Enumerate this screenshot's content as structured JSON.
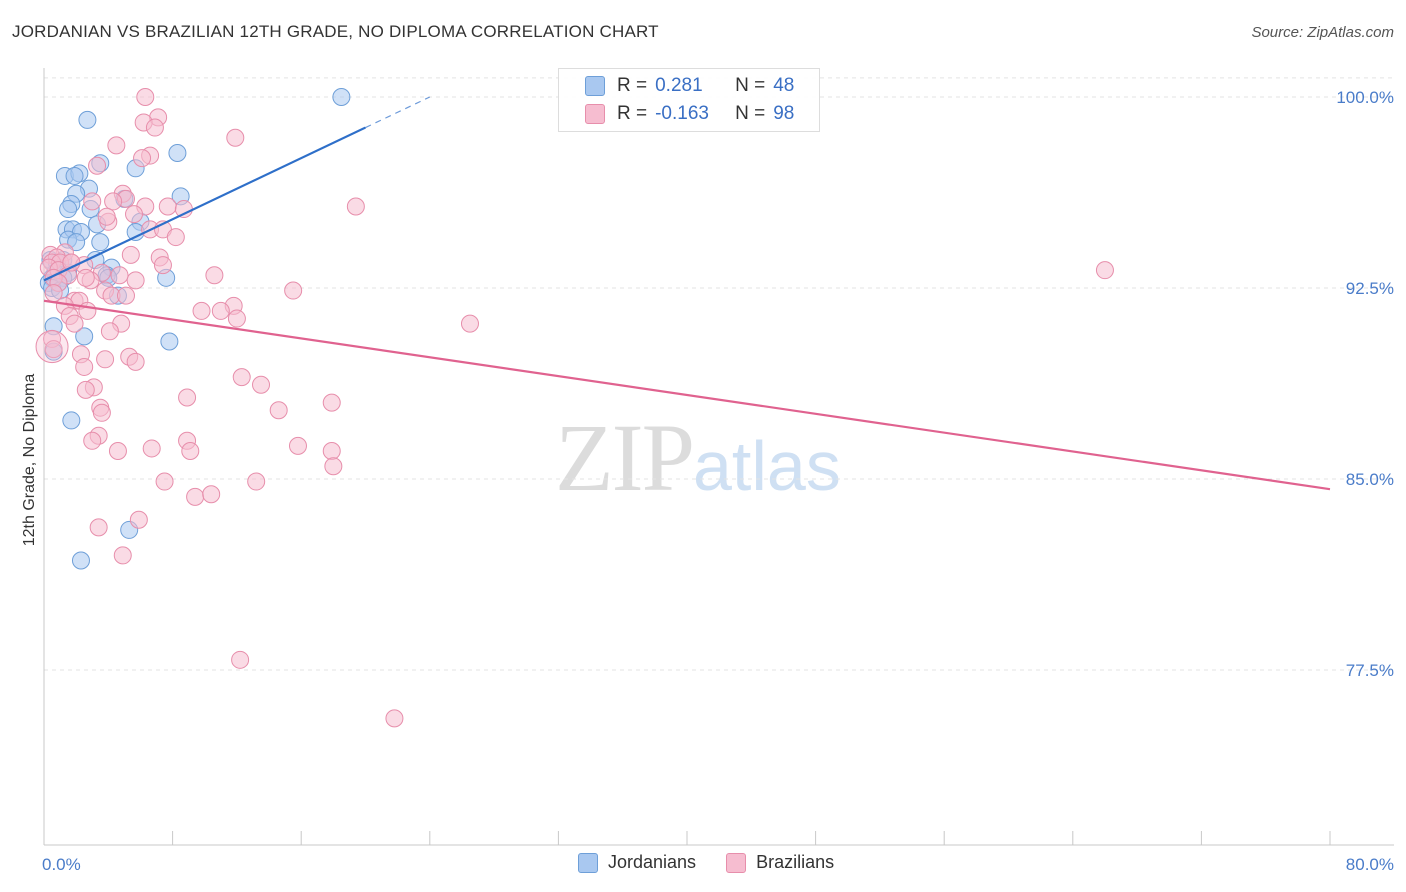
{
  "title": "JORDANIAN VS BRAZILIAN 12TH GRADE, NO DIPLOMA CORRELATION CHART",
  "source": "Source: ZipAtlas.com",
  "watermark": {
    "zip": "ZIP",
    "atlas": "atlas"
  },
  "legend": {
    "rows": [
      {
        "r_label": "R =",
        "r_value": "0.281",
        "n_label": "N =",
        "n_value": "48"
      },
      {
        "r_label": "R =",
        "r_value": "-0.163",
        "n_label": "N =",
        "n_value": "98"
      }
    ]
  },
  "bottom_legend": {
    "jordanians": "Jordanians",
    "brazilians": "Brazilians"
  },
  "colors": {
    "jordanian_fill": "#a9c8f0",
    "jordanian_stroke": "#6e9fd8",
    "jordanian_line": "#2e6fc9",
    "brazilian_fill": "#f6bdd0",
    "brazilian_stroke": "#e78eab",
    "brazilian_line": "#e0628f",
    "tick_text": "#4a7cc9",
    "grid": "#e3e3e3"
  },
  "chart_data": {
    "type": "scatter",
    "title": "JORDANIAN VS BRAZILIAN 12TH GRADE, NO DIPLOMA CORRELATION CHART",
    "xlabel": "",
    "ylabel": "12th Grade, No Diploma",
    "xlim": [
      0,
      80
    ],
    "ylim": [
      72.0,
      101.0
    ],
    "x_tick_labels": [
      {
        "value": 0,
        "label": "0.0%"
      },
      {
        "value": 80,
        "label": "80.0%"
      }
    ],
    "y_tick_labels": [
      {
        "value": 100.0,
        "label": "100.0%"
      },
      {
        "value": 92.5,
        "label": "92.5%"
      },
      {
        "value": 85.0,
        "label": "85.0%"
      },
      {
        "value": 77.5,
        "label": "77.5%"
      }
    ],
    "x_minor_ticks": [
      0,
      8,
      16,
      24,
      32,
      40,
      48,
      56,
      64,
      72,
      80
    ],
    "series": [
      {
        "name": "Jordanians",
        "R": 0.281,
        "N": 48,
        "trend": {
          "x": [
            0,
            20
          ],
          "y": [
            92.8,
            98.8
          ],
          "dashed_to": {
            "x": 24,
            "y": 100.0
          }
        },
        "points": [
          {
            "x": 18.5,
            "y": 100.0
          },
          {
            "x": 2.7,
            "y": 99.1
          },
          {
            "x": 8.3,
            "y": 97.8
          },
          {
            "x": 3.5,
            "y": 97.4
          },
          {
            "x": 5.7,
            "y": 97.2
          },
          {
            "x": 1.3,
            "y": 96.9
          },
          {
            "x": 2.2,
            "y": 97.0
          },
          {
            "x": 1.9,
            "y": 96.9
          },
          {
            "x": 2.8,
            "y": 96.4
          },
          {
            "x": 2.0,
            "y": 96.2
          },
          {
            "x": 8.5,
            "y": 96.1
          },
          {
            "x": 5.0,
            "y": 96.0
          },
          {
            "x": 1.7,
            "y": 95.8
          },
          {
            "x": 1.5,
            "y": 95.6
          },
          {
            "x": 2.9,
            "y": 95.6
          },
          {
            "x": 6.0,
            "y": 95.1
          },
          {
            "x": 3.3,
            "y": 95.0
          },
          {
            "x": 1.4,
            "y": 94.8
          },
          {
            "x": 1.8,
            "y": 94.8
          },
          {
            "x": 2.3,
            "y": 94.7
          },
          {
            "x": 5.7,
            "y": 94.7
          },
          {
            "x": 1.5,
            "y": 94.4
          },
          {
            "x": 2.0,
            "y": 94.3
          },
          {
            "x": 3.5,
            "y": 94.3
          },
          {
            "x": 0.4,
            "y": 93.6
          },
          {
            "x": 1.2,
            "y": 93.6
          },
          {
            "x": 3.2,
            "y": 93.6
          },
          {
            "x": 0.8,
            "y": 93.5
          },
          {
            "x": 4.2,
            "y": 93.3
          },
          {
            "x": 0.7,
            "y": 93.1
          },
          {
            "x": 1.5,
            "y": 93.1
          },
          {
            "x": 3.9,
            "y": 93.0
          },
          {
            "x": 0.5,
            "y": 92.9
          },
          {
            "x": 1.2,
            "y": 92.9
          },
          {
            "x": 7.6,
            "y": 92.9
          },
          {
            "x": 0.3,
            "y": 92.7
          },
          {
            "x": 4.0,
            "y": 92.9
          },
          {
            "x": 0.9,
            "y": 92.7
          },
          {
            "x": 0.5,
            "y": 92.5
          },
          {
            "x": 1.0,
            "y": 92.4
          },
          {
            "x": 4.6,
            "y": 92.2
          },
          {
            "x": 0.6,
            "y": 91.0
          },
          {
            "x": 2.5,
            "y": 90.6
          },
          {
            "x": 7.8,
            "y": 90.4
          },
          {
            "x": 0.6,
            "y": 90.0
          },
          {
            "x": 1.7,
            "y": 87.3
          },
          {
            "x": 5.3,
            "y": 83.0
          },
          {
            "x": 2.3,
            "y": 81.8
          }
        ]
      },
      {
        "name": "Brazilians",
        "R": -0.163,
        "N": 98,
        "trend": {
          "x": [
            0,
            80
          ],
          "y": [
            92.0,
            84.6
          ]
        },
        "points": [
          {
            "x": 6.3,
            "y": 100.0
          },
          {
            "x": 7.1,
            "y": 99.2
          },
          {
            "x": 6.2,
            "y": 99.0
          },
          {
            "x": 6.9,
            "y": 98.8
          },
          {
            "x": 11.9,
            "y": 98.4
          },
          {
            "x": 4.5,
            "y": 98.1
          },
          {
            "x": 6.6,
            "y": 97.7
          },
          {
            "x": 6.1,
            "y": 97.6
          },
          {
            "x": 3.3,
            "y": 97.3
          },
          {
            "x": 4.9,
            "y": 96.2
          },
          {
            "x": 5.1,
            "y": 96.0
          },
          {
            "x": 3.0,
            "y": 95.9
          },
          {
            "x": 4.3,
            "y": 95.9
          },
          {
            "x": 6.3,
            "y": 95.7
          },
          {
            "x": 7.7,
            "y": 95.7
          },
          {
            "x": 19.4,
            "y": 95.7
          },
          {
            "x": 8.7,
            "y": 95.6
          },
          {
            "x": 5.6,
            "y": 95.4
          },
          {
            "x": 4.0,
            "y": 95.1
          },
          {
            "x": 6.6,
            "y": 94.8
          },
          {
            "x": 7.4,
            "y": 94.8
          },
          {
            "x": 8.2,
            "y": 94.5
          },
          {
            "x": 1.3,
            "y": 93.9
          },
          {
            "x": 0.4,
            "y": 93.8
          },
          {
            "x": 0.8,
            "y": 93.7
          },
          {
            "x": 5.4,
            "y": 93.8
          },
          {
            "x": 7.2,
            "y": 93.7
          },
          {
            "x": 0.5,
            "y": 93.5
          },
          {
            "x": 1.0,
            "y": 93.5
          },
          {
            "x": 1.7,
            "y": 93.5
          },
          {
            "x": 2.5,
            "y": 93.4
          },
          {
            "x": 7.4,
            "y": 93.4
          },
          {
            "x": 0.3,
            "y": 93.3
          },
          {
            "x": 0.9,
            "y": 93.2
          },
          {
            "x": 3.6,
            "y": 93.1
          },
          {
            "x": 1.5,
            "y": 93.0
          },
          {
            "x": 10.6,
            "y": 93.0
          },
          {
            "x": 0.6,
            "y": 92.9
          },
          {
            "x": 2.9,
            "y": 92.8
          },
          {
            "x": 5.7,
            "y": 92.8
          },
          {
            "x": 66.0,
            "y": 93.2
          },
          {
            "x": 3.8,
            "y": 92.4
          },
          {
            "x": 15.5,
            "y": 92.4
          },
          {
            "x": 4.2,
            "y": 92.2
          },
          {
            "x": 5.1,
            "y": 92.2
          },
          {
            "x": 1.9,
            "y": 92.0
          },
          {
            "x": 2.2,
            "y": 92.0
          },
          {
            "x": 11.8,
            "y": 91.8
          },
          {
            "x": 1.3,
            "y": 91.8
          },
          {
            "x": 2.7,
            "y": 91.6
          },
          {
            "x": 9.8,
            "y": 91.6
          },
          {
            "x": 11.0,
            "y": 91.6
          },
          {
            "x": 1.6,
            "y": 91.4
          },
          {
            "x": 12.0,
            "y": 91.3
          },
          {
            "x": 4.8,
            "y": 91.1
          },
          {
            "x": 1.9,
            "y": 91.1
          },
          {
            "x": 26.5,
            "y": 91.1
          },
          {
            "x": 4.1,
            "y": 90.8
          },
          {
            "x": 0.5,
            "y": 90.5
          },
          {
            "x": 0.6,
            "y": 90.1
          },
          {
            "x": 2.3,
            "y": 89.9
          },
          {
            "x": 5.3,
            "y": 89.8
          },
          {
            "x": 3.8,
            "y": 89.7
          },
          {
            "x": 5.7,
            "y": 89.6
          },
          {
            "x": 2.5,
            "y": 89.4
          },
          {
            "x": 12.3,
            "y": 89.0
          },
          {
            "x": 13.5,
            "y": 88.7
          },
          {
            "x": 3.1,
            "y": 88.6
          },
          {
            "x": 2.6,
            "y": 88.5
          },
          {
            "x": 8.9,
            "y": 88.2
          },
          {
            "x": 17.9,
            "y": 88.0
          },
          {
            "x": 3.5,
            "y": 87.8
          },
          {
            "x": 3.6,
            "y": 87.6
          },
          {
            "x": 14.6,
            "y": 87.7
          },
          {
            "x": 3.4,
            "y": 86.7
          },
          {
            "x": 8.9,
            "y": 86.5
          },
          {
            "x": 3.0,
            "y": 86.5
          },
          {
            "x": 15.8,
            "y": 86.3
          },
          {
            "x": 6.7,
            "y": 86.2
          },
          {
            "x": 4.6,
            "y": 86.1
          },
          {
            "x": 9.1,
            "y": 86.1
          },
          {
            "x": 17.9,
            "y": 86.1
          },
          {
            "x": 18.0,
            "y": 85.5
          },
          {
            "x": 7.5,
            "y": 84.9
          },
          {
            "x": 13.2,
            "y": 84.9
          },
          {
            "x": 9.4,
            "y": 84.3
          },
          {
            "x": 10.4,
            "y": 84.4
          },
          {
            "x": 5.9,
            "y": 83.4
          },
          {
            "x": 3.4,
            "y": 83.1
          },
          {
            "x": 4.9,
            "y": 82.0
          },
          {
            "x": 12.2,
            "y": 77.9
          },
          {
            "x": 21.8,
            "y": 75.6
          },
          {
            "x": 1.7,
            "y": 93.5
          },
          {
            "x": 0.9,
            "y": 92.7
          },
          {
            "x": 2.6,
            "y": 92.9
          },
          {
            "x": 4.7,
            "y": 93.0
          },
          {
            "x": 3.9,
            "y": 95.3
          },
          {
            "x": 0.6,
            "y": 92.3
          }
        ]
      }
    ]
  }
}
